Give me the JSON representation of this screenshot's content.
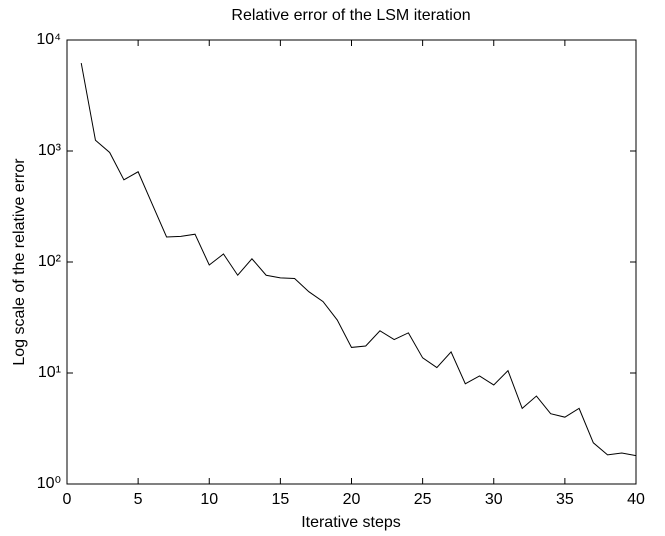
{
  "chart_data": {
    "type": "line",
    "title": "Relative error of the LSM iteration",
    "x_label": "Iterative steps",
    "y_label": "Log scale of the relative error",
    "y_scale": "log",
    "grid": false,
    "color": "#000000",
    "x": [
      1,
      2,
      3,
      4,
      5,
      6,
      7,
      8,
      9,
      10,
      11,
      12,
      13,
      14,
      15,
      16,
      17,
      18,
      19,
      20,
      21,
      22,
      23,
      24,
      25,
      26,
      27,
      28,
      29,
      30,
      31,
      32,
      33,
      34,
      35,
      36,
      37,
      38,
      39,
      40
    ],
    "values": [
      6200,
      1250,
      970,
      550,
      650,
      330,
      168,
      170,
      178,
      94,
      118,
      76,
      107,
      76,
      72,
      71,
      54,
      44,
      30,
      17,
      17.5,
      24,
      20,
      23,
      13.7,
      11.2,
      15.5,
      8.0,
      9.4,
      7.8,
      10.5,
      4.8,
      6.2,
      4.3,
      4.0,
      4.8,
      2.35,
      1.83,
      1.9,
      1.8
    ],
    "xlim": [
      0,
      40
    ],
    "xticks": [
      0,
      5,
      10,
      15,
      20,
      25,
      30,
      35,
      40
    ],
    "ylim": [
      1,
      10000
    ],
    "yticks": [
      {
        "value": 1,
        "label": "10⁰"
      },
      {
        "value": 10,
        "label": "10¹"
      },
      {
        "value": 100,
        "label": "10²"
      },
      {
        "value": 1000,
        "label": "10³"
      },
      {
        "value": 10000,
        "label": "10⁴"
      }
    ]
  }
}
